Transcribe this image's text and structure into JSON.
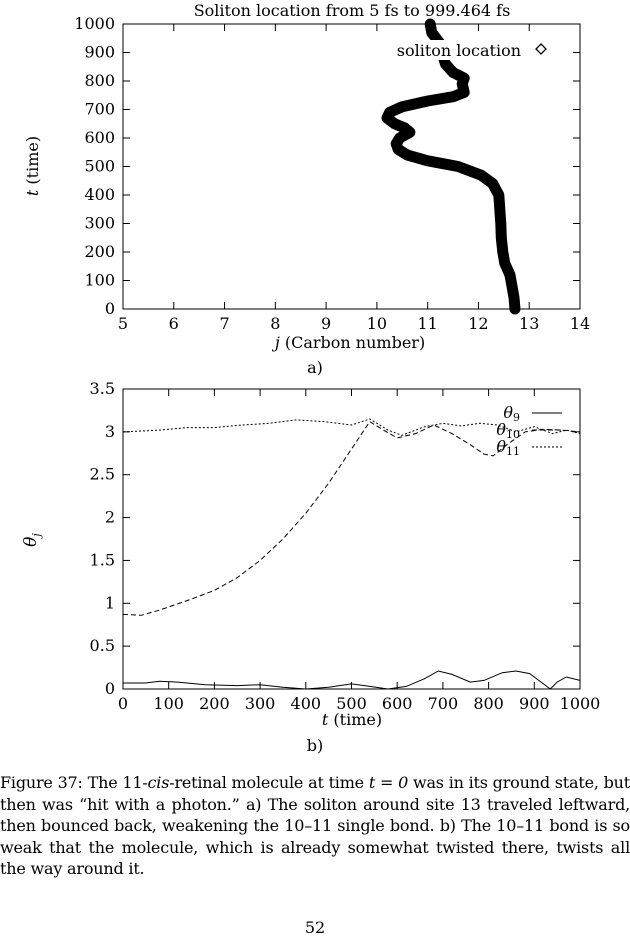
{
  "figure_a": {
    "panel_label": "a)",
    "chart_data": {
      "type": "line",
      "title": "Soliton location from 5 fs to 999.464 fs",
      "xlabel_var": "j",
      "xlabel_rest": " (Carbon number)",
      "ylabel_var": "t",
      "ylabel_rest": " (time)",
      "xlim": [
        5,
        14
      ],
      "ylim": [
        0,
        1000
      ],
      "xticks": [
        "5",
        "6",
        "7",
        "8",
        "9",
        "10",
        "11",
        "12",
        "13",
        "14"
      ],
      "yticks": [
        "0",
        "100",
        "200",
        "300",
        "400",
        "500",
        "600",
        "700",
        "800",
        "900",
        "1000"
      ],
      "legend_position": "top-right",
      "series": [
        {
          "name": "soliton location",
          "points": [
            [
              12.72,
              0
            ],
            [
              12.7,
              40
            ],
            [
              12.66,
              80
            ],
            [
              12.62,
              120
            ],
            [
              12.52,
              160
            ],
            [
              12.48,
              200
            ],
            [
              12.45,
              250
            ],
            [
              12.44,
              300
            ],
            [
              12.42,
              350
            ],
            [
              12.4,
              400
            ],
            [
              12.28,
              440
            ],
            [
              12.05,
              470
            ],
            [
              11.6,
              500
            ],
            [
              11.0,
              520
            ],
            [
              10.6,
              540
            ],
            [
              10.42,
              560
            ],
            [
              10.38,
              580
            ],
            [
              10.45,
              600
            ],
            [
              10.65,
              620
            ],
            [
              10.55,
              635
            ],
            [
              10.35,
              650
            ],
            [
              10.2,
              670
            ],
            [
              10.25,
              690
            ],
            [
              10.5,
              710
            ],
            [
              11.0,
              730
            ],
            [
              11.5,
              745
            ],
            [
              11.72,
              760
            ],
            [
              11.68,
              790
            ],
            [
              11.72,
              810
            ],
            [
              11.5,
              830
            ],
            [
              11.35,
              860
            ],
            [
              11.3,
              890
            ],
            [
              11.25,
              930
            ],
            [
              11.08,
              970
            ],
            [
              11.05,
              1000
            ]
          ]
        }
      ]
    }
  },
  "figure_b": {
    "panel_label": "b)",
    "chart_data": {
      "type": "line",
      "xlabel_var": "t",
      "xlabel_rest": " (time)",
      "ylabel_var": "θ",
      "ylabel_sub": "j",
      "xlim": [
        0,
        1000
      ],
      "ylim": [
        0,
        3.5
      ],
      "xticks": [
        "0",
        "100",
        "200",
        "300",
        "400",
        "500",
        "600",
        "700",
        "800",
        "900",
        "1000"
      ],
      "yticks": [
        "0",
        "0.5",
        "1",
        "1.5",
        "2",
        "2.5",
        "3",
        "3.5"
      ],
      "legend_position": "top-right",
      "series": [
        {
          "name": "θ9",
          "style": "solid",
          "points": [
            [
              0,
              0.07
            ],
            [
              50,
              0.07
            ],
            [
              80,
              0.09
            ],
            [
              120,
              0.08
            ],
            [
              180,
              0.05
            ],
            [
              250,
              0.04
            ],
            [
              300,
              0.05
            ],
            [
              350,
              0.02
            ],
            [
              400,
              0.0
            ],
            [
              450,
              0.02
            ],
            [
              500,
              0.06
            ],
            [
              540,
              0.03
            ],
            [
              580,
              0.0
            ],
            [
              620,
              0.03
            ],
            [
              660,
              0.12
            ],
            [
              690,
              0.21
            ],
            [
              720,
              0.17
            ],
            [
              760,
              0.08
            ],
            [
              790,
              0.1
            ],
            [
              830,
              0.19
            ],
            [
              860,
              0.21
            ],
            [
              890,
              0.18
            ],
            [
              920,
              0.06
            ],
            [
              935,
              0.0
            ],
            [
              950,
              0.08
            ],
            [
              970,
              0.14
            ],
            [
              1000,
              0.1
            ]
          ]
        },
        {
          "name": "θ10",
          "style": "dashed",
          "points": [
            [
              0,
              0.87
            ],
            [
              40,
              0.86
            ],
            [
              80,
              0.92
            ],
            [
              150,
              1.05
            ],
            [
              200,
              1.15
            ],
            [
              250,
              1.3
            ],
            [
              300,
              1.5
            ],
            [
              350,
              1.75
            ],
            [
              400,
              2.05
            ],
            [
              450,
              2.4
            ],
            [
              500,
              2.8
            ],
            [
              540,
              3.12
            ],
            [
              570,
              3.02
            ],
            [
              600,
              2.93
            ],
            [
              640,
              2.98
            ],
            [
              680,
              3.08
            ],
            [
              720,
              2.98
            ],
            [
              760,
              2.85
            ],
            [
              790,
              2.74
            ],
            [
              810,
              2.72
            ],
            [
              840,
              2.85
            ],
            [
              880,
              3.0
            ],
            [
              920,
              3.03
            ],
            [
              960,
              3.02
            ],
            [
              1000,
              3.0
            ]
          ]
        },
        {
          "name": "θ11",
          "style": "dotted",
          "points": [
            [
              0,
              3.0
            ],
            [
              80,
              3.02
            ],
            [
              140,
              3.05
            ],
            [
              200,
              3.05
            ],
            [
              260,
              3.08
            ],
            [
              320,
              3.1
            ],
            [
              380,
              3.14
            ],
            [
              440,
              3.12
            ],
            [
              500,
              3.08
            ],
            [
              540,
              3.15
            ],
            [
              580,
              3.02
            ],
            [
              610,
              2.96
            ],
            [
              660,
              3.06
            ],
            [
              700,
              3.1
            ],
            [
              740,
              3.07
            ],
            [
              780,
              3.1
            ],
            [
              820,
              3.08
            ],
            [
              860,
              3.0
            ],
            [
              900,
              3.06
            ],
            [
              940,
              2.98
            ],
            [
              970,
              3.02
            ],
            [
              1000,
              2.98
            ]
          ]
        }
      ]
    }
  },
  "caption": {
    "prefix": "Figure 37: The 11-",
    "italic": "cis",
    "mid": "-retinal molecule at time ",
    "math": "t = 0",
    "rest": " was in its ground state, but then was “hit with a photon.”  a) The soliton around site 13 traveled leftward, then bounced back, weakening the 10–11 single bond. b) The 10–11 bond is so weak that the molecule, which is already somewhat twisted there, twists all the way around it."
  },
  "page_number": "52"
}
